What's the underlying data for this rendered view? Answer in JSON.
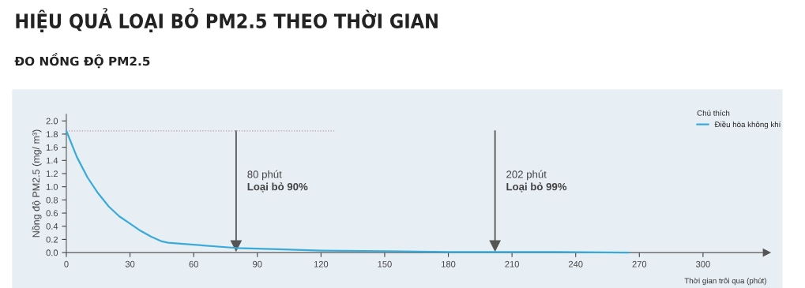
{
  "chart_data": {
    "type": "line",
    "title": "HIỆU QUẢ LOẠI BỎ PM2.5 THEO THỜI GIAN",
    "subtitle": "ĐO NỒNG ĐỘ PM2.5",
    "xlabel": "Thời gian trôi qua (phút)",
    "ylabel": "Nồng độ PM2.5 (mg/ m³)",
    "legend_title": "Chú thích",
    "series": [
      {
        "name": "Điều hòa không khí",
        "color": "#3aaad8",
        "x": [
          0,
          5,
          10,
          15,
          20,
          25,
          30,
          35,
          40,
          45,
          48,
          60,
          80,
          100,
          120,
          150,
          180,
          202,
          230,
          265
        ],
        "values": [
          1.85,
          1.45,
          1.14,
          0.9,
          0.7,
          0.55,
          0.44,
          0.33,
          0.24,
          0.17,
          0.15,
          0.12,
          0.07,
          0.05,
          0.03,
          0.02,
          0.01,
          0.01,
          0.01,
          0
        ]
      },
      {
        "type": "line",
        "color": "#b89aa8",
        "line_style": "dotted",
        "x": [
          0,
          127
        ],
        "values": [
          1.85,
          1.85
        ]
      }
    ],
    "annotations": [
      "80 phút",
      "Loại bỏ 90%",
      "202 phút",
      "Loại bỏ 99%"
    ],
    "ref_lines": [
      {
        "axis": "x",
        "value": 80,
        "color": "#555555"
      },
      {
        "axis": "x",
        "value": 202,
        "color": "#555555"
      }
    ],
    "xlim": [
      0,
      330
    ],
    "ylim": [
      0,
      2.1
    ],
    "xticks": [
      0,
      30,
      60,
      90,
      120,
      150,
      180,
      210,
      240,
      270,
      300
    ],
    "yticks": [
      {
        "value": 0,
        "label": "0.0"
      },
      {
        "value": 0.2,
        "label": "0.2"
      },
      {
        "value": 0.4,
        "label": "0.4"
      },
      {
        "value": 0.6,
        "label": "0.6"
      },
      {
        "value": 0.8,
        "label": "0.8"
      },
      {
        "value": 1.0,
        "label": "1.0"
      },
      {
        "value": 1.2,
        "label": "1.2"
      },
      {
        "value": 1.4,
        "label": "1.4"
      },
      {
        "value": 1.6,
        "label": "1.6"
      },
      {
        "value": 1.8,
        "label": "1.8"
      },
      {
        "value": 2.0,
        "label": "2.0"
      }
    ],
    "grid": false,
    "legend": "top right",
    "marker": "none",
    "line_style": "solid"
  }
}
